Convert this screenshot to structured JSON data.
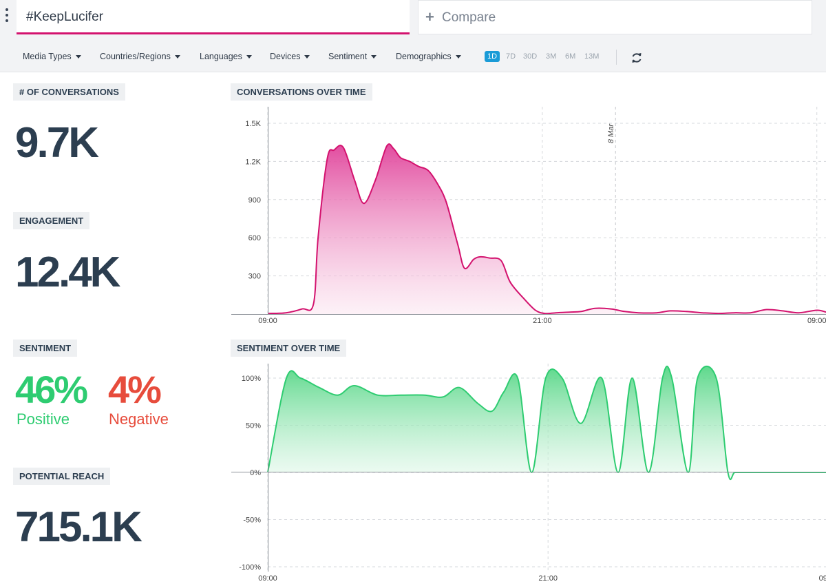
{
  "header": {
    "search_value": "#KeepLucifer",
    "compare_label": "Compare"
  },
  "filters": [
    "Media Types",
    "Countries/Regions",
    "Languages",
    "Devices",
    "Sentiment",
    "Demographics"
  ],
  "time_ranges": [
    "1D",
    "7D",
    "30D",
    "3M",
    "6M",
    "13M"
  ],
  "active_time_range": "1D",
  "icons": {
    "menu": "kebab-menu-icon",
    "add": "plus-icon",
    "dropdown": "caret-down-icon",
    "refresh": "refresh-icon"
  },
  "metrics": {
    "conversations": {
      "label": "# OF CONVERSATIONS",
      "value": "9.7K"
    },
    "engagement": {
      "label": "ENGAGEMENT",
      "value": "12.4K"
    },
    "sentiment": {
      "label": "SENTIMENT",
      "positive_value": "46%",
      "positive_label": "Positive",
      "negative_value": "4%",
      "negative_label": "Negative"
    },
    "potential_reach": {
      "label": "POTENTIAL REACH",
      "value": "715.1K"
    }
  },
  "colors": {
    "accent": "#d3126e",
    "positive": "#2ecc71",
    "negative": "#e74c3c",
    "active_range": "#1a9bd7"
  },
  "chart_data": [
    {
      "type": "area",
      "title": "CONVERSATIONS OVER TIME",
      "x_tick_labels": [
        "09:00",
        "21:00",
        "09:00"
      ],
      "x_ticks_hours": [
        0,
        12,
        24
      ],
      "xlim_hours": [
        0,
        24.4
      ],
      "y_ticks": [
        300,
        600,
        900,
        1200,
        1500
      ],
      "y_tick_labels": [
        "300",
        "600",
        "900",
        "1.2K",
        "1.5K"
      ],
      "ylim": [
        0,
        1500
      ],
      "annotation": "8 Mar",
      "annotation_hour": 15.2,
      "color": "#d3126e",
      "x_hours": [
        0,
        0.8,
        1.5,
        2,
        2.2,
        2.6,
        2.9,
        3.3,
        3.8,
        4.2,
        4.7,
        5.2,
        5.5,
        5.8,
        6.2,
        6.6,
        7,
        7.4,
        7.8,
        8.3,
        8.6,
        9,
        9.3,
        9.7,
        10.2,
        10.6,
        11.2,
        11.7,
        12.1,
        12.6,
        13.2,
        13.7,
        14.3,
        15,
        15.6,
        16.2,
        17,
        17.6,
        18.3,
        19,
        19.7,
        20.4,
        21.1,
        21.8,
        22.5,
        23.2,
        24,
        24.4
      ],
      "values": [
        5,
        10,
        40,
        80,
        600,
        1220,
        1290,
        1310,
        1050,
        870,
        1050,
        1320,
        1300,
        1230,
        1200,
        1160,
        1130,
        1030,
        880,
        550,
        360,
        430,
        450,
        440,
        420,
        250,
        120,
        30,
        5,
        10,
        15,
        20,
        45,
        40,
        20,
        10,
        10,
        25,
        20,
        10,
        5,
        10,
        10,
        35,
        25,
        10,
        30,
        15
      ]
    },
    {
      "type": "area",
      "title": "SENTIMENT OVER TIME",
      "x_tick_labels": [
        "09:00",
        "21:00",
        "09:00"
      ],
      "x_ticks_hours": [
        0,
        12,
        24
      ],
      "xlim_hours": [
        0,
        23.9
      ],
      "y_ticks": [
        -100,
        -50,
        0,
        50,
        100
      ],
      "y_tick_labels": [
        "-100%",
        "-50%",
        "0%",
        "50%",
        "100%"
      ],
      "ylim": [
        -100,
        100
      ],
      "color": "#2ecc71",
      "x_hours": [
        0,
        0.8,
        1.4,
        2.2,
        3,
        3.7,
        4.7,
        5.7,
        6.7,
        7.5,
        8.2,
        9,
        9.6,
        10.1,
        10.7,
        11.3,
        11.9,
        12.6,
        13.4,
        14.3,
        15,
        15.6,
        16.3,
        16.9,
        17.3,
        18,
        18.4,
        19.2,
        19.7,
        20,
        20.5,
        21.3,
        21.9,
        22.5,
        23.2,
        23.9
      ],
      "values": [
        0,
        100,
        100,
        90,
        82,
        92,
        82,
        82,
        82,
        80,
        90,
        73,
        65,
        85,
        100,
        0,
        100,
        100,
        52,
        100,
        0,
        100,
        0,
        100,
        100,
        0,
        100,
        100,
        0,
        0,
        0,
        0,
        0,
        0,
        0,
        0
      ]
    }
  ]
}
